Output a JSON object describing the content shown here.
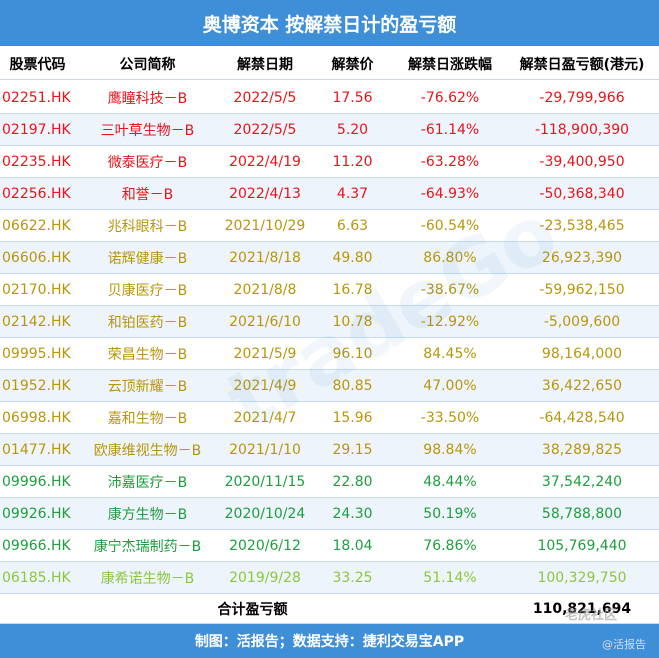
{
  "header": {
    "title": "奥博资本 按解禁日计的盈亏额"
  },
  "table": {
    "columns": [
      "股票代码",
      "公司简称",
      "解禁日期",
      "解禁价",
      "解禁日涨跌幅",
      "解禁日盈亏额(港元)"
    ],
    "rows": [
      {
        "color": "#e8141b",
        "cells": [
          "02251.HK",
          "鹰瞳科技－B",
          "2022/5/5",
          "17.56",
          "-76.62%",
          "-29,799,966"
        ]
      },
      {
        "color": "#e8141b",
        "cells": [
          "02197.HK",
          "三叶草生物－B",
          "2022/5/5",
          "5.20",
          "-61.14%",
          "-118,900,390"
        ]
      },
      {
        "color": "#e8141b",
        "cells": [
          "02235.HK",
          "微泰医疗－B",
          "2022/4/19",
          "11.20",
          "-63.28%",
          "-39,400,950"
        ]
      },
      {
        "color": "#e8141b",
        "cells": [
          "02256.HK",
          "和誉－B",
          "2022/4/13",
          "4.37",
          "-64.93%",
          "-50,368,340"
        ]
      },
      {
        "color": "#b8960c",
        "cells": [
          "06622.HK",
          "兆科眼科－B",
          "2021/10/29",
          "6.63",
          "-60.54%",
          "-23,538,465"
        ]
      },
      {
        "color": "#b8960c",
        "cells": [
          "06606.HK",
          "诺辉健康－B",
          "2021/8/18",
          "49.80",
          "86.80%",
          "26,923,390"
        ]
      },
      {
        "color": "#b8960c",
        "cells": [
          "02170.HK",
          "贝康医疗－B",
          "2021/8/8",
          "16.78",
          "-38.67%",
          "-59,962,150"
        ]
      },
      {
        "color": "#b8960c",
        "cells": [
          "02142.HK",
          "和铂医药－B",
          "2021/6/10",
          "10.78",
          "-12.92%",
          "-5,009,600"
        ]
      },
      {
        "color": "#b8960c",
        "cells": [
          "09995.HK",
          "荣昌生物－B",
          "2021/5/9",
          "96.10",
          "84.45%",
          "98,164,000"
        ]
      },
      {
        "color": "#b8960c",
        "cells": [
          "01952.HK",
          "云顶新耀－B",
          "2021/4/9",
          "80.85",
          "47.00%",
          "36,422,650"
        ]
      },
      {
        "color": "#b8960c",
        "cells": [
          "06998.HK",
          "嘉和生物－B",
          "2021/4/7",
          "15.96",
          "-33.50%",
          "-64,428,540"
        ]
      },
      {
        "color": "#b8960c",
        "cells": [
          "01477.HK",
          "欧康维视生物－B",
          "2021/1/10",
          "29.15",
          "98.84%",
          "38,289,825"
        ]
      },
      {
        "color": "#1e9e3e",
        "cells": [
          "09996.HK",
          "沛嘉医疗－B",
          "2020/11/15",
          "22.80",
          "48.44%",
          "37,542,240"
        ]
      },
      {
        "color": "#1e9e3e",
        "cells": [
          "09926.HK",
          "康方生物－B",
          "2020/10/24",
          "24.30",
          "50.19%",
          "58,788,800"
        ]
      },
      {
        "color": "#1e9e3e",
        "cells": [
          "09966.HK",
          "康宁杰瑞制药－B",
          "2020/6/12",
          "18.04",
          "76.86%",
          "105,769,440"
        ]
      },
      {
        "color": "#8cc63f",
        "cells": [
          "06185.HK",
          "康希诺生物－B",
          "2019/9/28",
          "33.25",
          "51.14%",
          "100,329,750"
        ]
      }
    ],
    "total_label": "合计盈亏额",
    "total_value": "110,821,694"
  },
  "footer": {
    "text": "制图：活报告；数据支持：捷利交易宝APP"
  },
  "watermarks": [
    "tradeGo",
    "老虎社区",
    "@活报告"
  ]
}
